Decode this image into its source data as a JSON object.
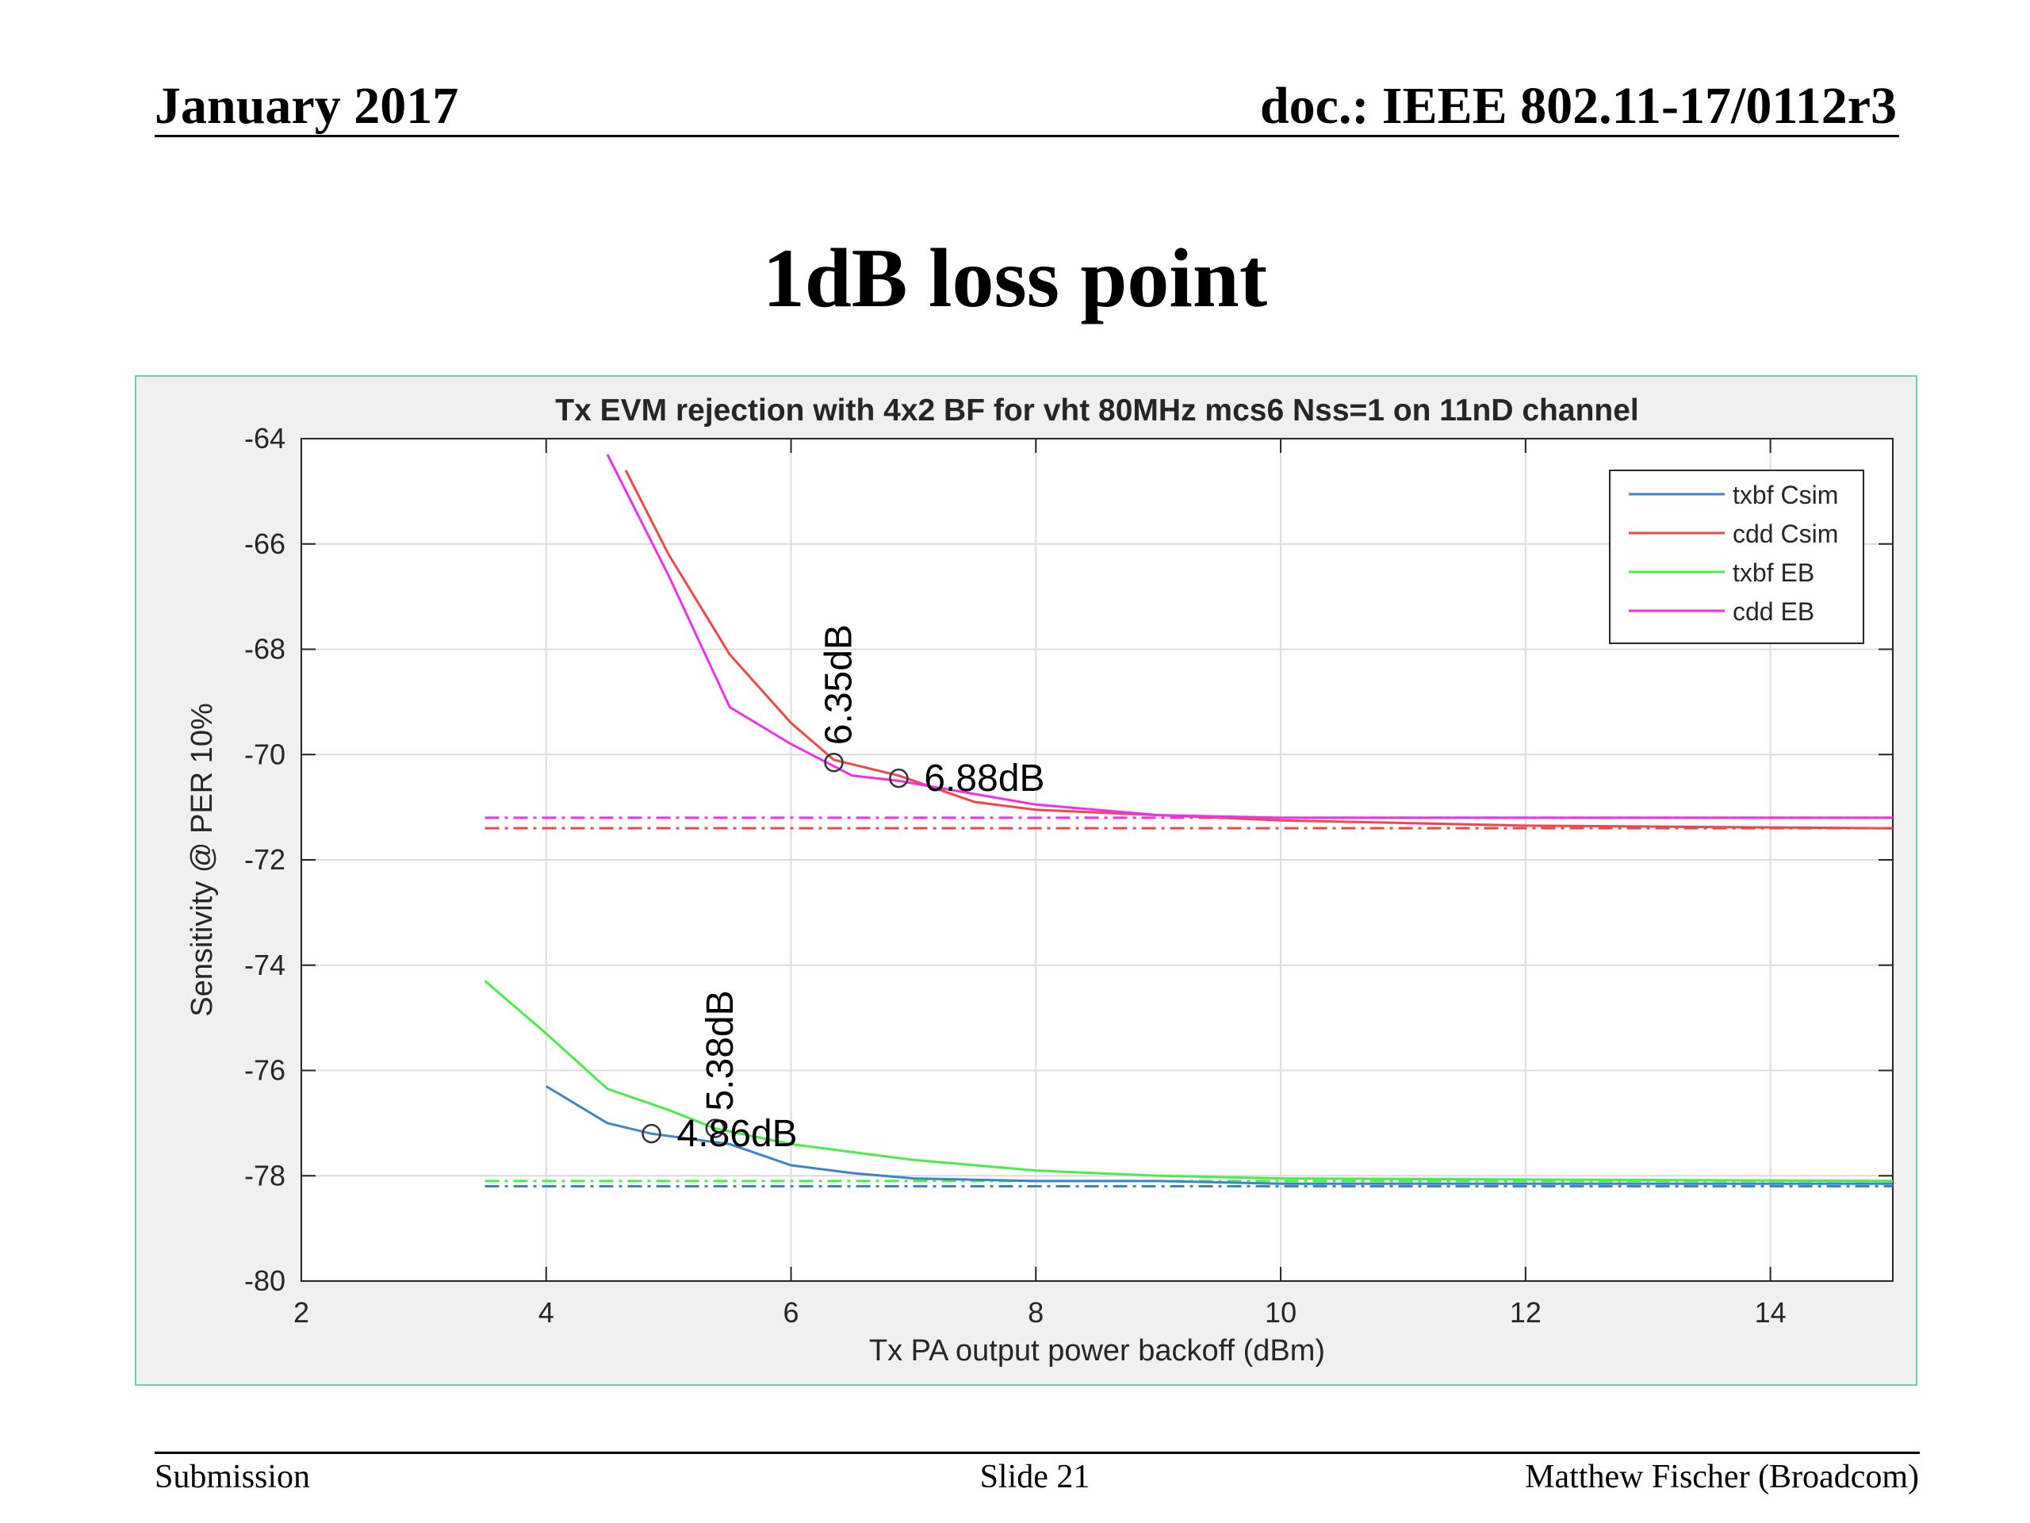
{
  "header": {
    "date": "January 2017",
    "doc": "doc.: IEEE 802.11-17/0112r3"
  },
  "slide": {
    "title": "1dB loss point"
  },
  "footer": {
    "left": "Submission",
    "center": "Slide 21",
    "right": "Matthew Fischer (Broadcom)"
  },
  "chart_data": {
    "type": "line",
    "title": "Tx EVM rejection with 4x2 BF for vht 80MHz mcs6 Nss=1 on 11nD channel",
    "xlabel": "Tx PA output power backoff (dBm)",
    "ylabel": "Sensitivity @ PER 10%",
    "xlim": [
      2,
      15
    ],
    "ylim": [
      -80,
      -64
    ],
    "xticks": [
      2,
      4,
      6,
      8,
      10,
      12,
      14
    ],
    "yticks": [
      -80,
      -78,
      -76,
      -74,
      -72,
      -70,
      -68,
      -66,
      -64
    ],
    "grid": true,
    "legend_position": "top-right",
    "series": [
      {
        "name": "txbf Csim",
        "color": "#3f84c4",
        "x": [
          4.0,
          4.5,
          4.86,
          5.5,
          6.0,
          6.5,
          7.0,
          8.0,
          9.0,
          10.0,
          12.0,
          15.0
        ],
        "y": [
          -76.3,
          -77.0,
          -77.2,
          -77.4,
          -77.8,
          -77.95,
          -78.05,
          -78.1,
          -78.1,
          -78.15,
          -78.15,
          -78.15
        ]
      },
      {
        "name": "cdd Csim",
        "color": "#f0474a",
        "x": [
          4.65,
          5.0,
          5.5,
          6.0,
          6.35,
          6.88,
          7.5,
          8.0,
          9.0,
          10.0,
          11.0,
          12.0,
          15.0
        ],
        "y": [
          -64.6,
          -66.2,
          -68.1,
          -69.4,
          -70.1,
          -70.4,
          -70.9,
          -71.05,
          -71.15,
          -71.25,
          -71.3,
          -71.35,
          -71.4
        ]
      },
      {
        "name": "txbf EB",
        "color": "#4cec4c",
        "x": [
          3.5,
          4.0,
          4.5,
          5.0,
          5.38,
          6.0,
          6.5,
          7.0,
          8.0,
          9.0,
          10.0,
          15.0
        ],
        "y": [
          -74.3,
          -75.3,
          -76.35,
          -76.75,
          -77.1,
          -77.4,
          -77.55,
          -77.7,
          -77.9,
          -78.0,
          -78.05,
          -78.1
        ]
      },
      {
        "name": "cdd EB",
        "color": "#ee31ee",
        "x": [
          4.5,
          5.0,
          5.5,
          6.0,
          6.5,
          6.88,
          7.5,
          8.0,
          9.0,
          10.0,
          11.0,
          15.0
        ],
        "y": [
          -64.3,
          -66.6,
          -69.1,
          -69.8,
          -70.4,
          -70.5,
          -70.75,
          -70.95,
          -71.15,
          -71.2,
          -71.2,
          -71.2
        ]
      }
    ],
    "reference_lines": [
      {
        "series": "cdd EB",
        "y": -71.2,
        "x_from": 3.5,
        "x_to": 15,
        "style": "dash-dot",
        "color": "#ee31ee"
      },
      {
        "series": "cdd Csim",
        "y": -71.4,
        "x_from": 3.5,
        "x_to": 15,
        "style": "dash-dot",
        "color": "#f0474a"
      },
      {
        "series": "txbf EB",
        "y": -78.1,
        "x_from": 3.5,
        "x_to": 15,
        "style": "dash-dot",
        "color": "#4cec4c"
      },
      {
        "series": "txbf Csim",
        "y": -78.2,
        "x_from": 3.5,
        "x_to": 15,
        "style": "dash-dot",
        "color": "#3f84c4"
      }
    ],
    "annotations": [
      {
        "label": "6.35dB",
        "x": 6.35,
        "y": -70.15,
        "orientation": "vertical"
      },
      {
        "label": "6.88dB",
        "x": 6.88,
        "y": -70.45,
        "orientation": "horizontal"
      },
      {
        "label": "5.38dB",
        "x": 5.38,
        "y": -77.1,
        "orientation": "vertical"
      },
      {
        "label": "4.86dB",
        "x": 4.86,
        "y": -77.2,
        "orientation": "horizontal"
      }
    ]
  }
}
